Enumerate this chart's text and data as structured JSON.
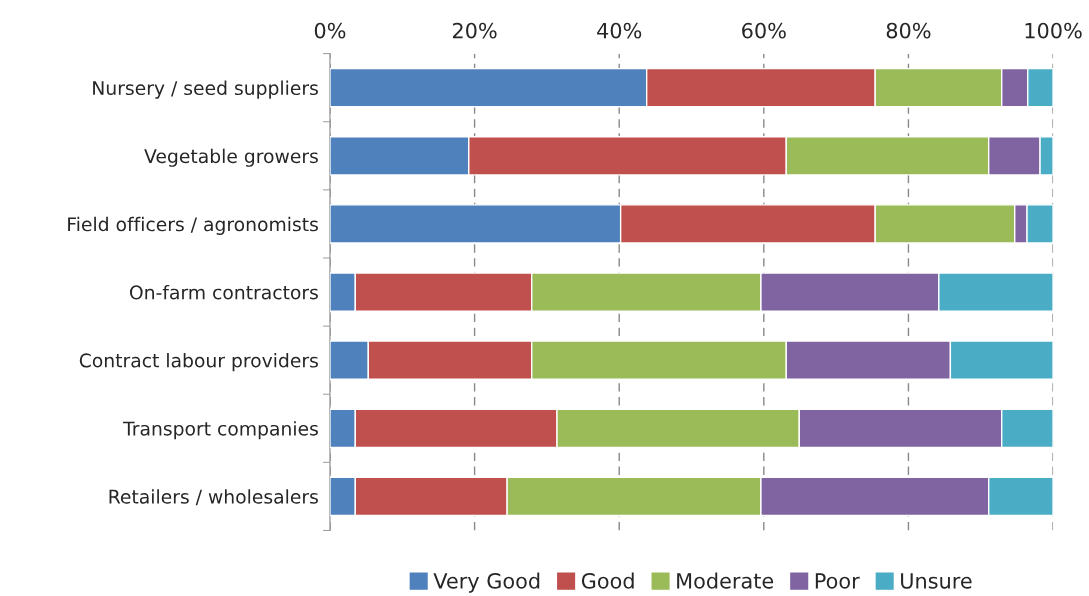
{
  "chart_data": {
    "type": "bar",
    "orientation": "horizontal",
    "stacked": true,
    "categories": [
      "Nursery / seed suppliers",
      "Vegetable growers",
      "Field officers / agronomists",
      "On-farm contractors",
      "Contract labour providers",
      "Transport companies",
      "Retailers / wholesalers"
    ],
    "series": [
      {
        "name": "Very Good",
        "color": "#4f81bd",
        "values": [
          43.8,
          19.2,
          40.2,
          3.5,
          5.3,
          3.5,
          3.5
        ]
      },
      {
        "name": "Good",
        "color": "#c0504d",
        "values": [
          31.6,
          43.9,
          35.2,
          24.4,
          22.6,
          27.9,
          21.0
        ]
      },
      {
        "name": "Moderate",
        "color": "#9bbb59",
        "values": [
          17.5,
          28.0,
          19.3,
          31.7,
          35.2,
          33.5,
          35.1
        ]
      },
      {
        "name": "Poor",
        "color": "#8064a2",
        "values": [
          3.6,
          7.1,
          1.7,
          24.6,
          22.7,
          28.0,
          31.5
        ]
      },
      {
        "name": "Unsure",
        "color": "#4bacc6",
        "values": [
          3.5,
          1.8,
          3.6,
          15.8,
          14.2,
          7.1,
          8.9
        ]
      }
    ],
    "xlim": [
      0,
      100
    ],
    "xticks": [
      {
        "value": 0,
        "label": "0%"
      },
      {
        "value": 20,
        "label": "20%"
      },
      {
        "value": 40,
        "label": "40%"
      },
      {
        "value": 60,
        "label": "60%"
      },
      {
        "value": 80,
        "label": "80%"
      },
      {
        "value": 100,
        "label": "100%"
      }
    ],
    "grid": "x",
    "legend": "bottom"
  }
}
